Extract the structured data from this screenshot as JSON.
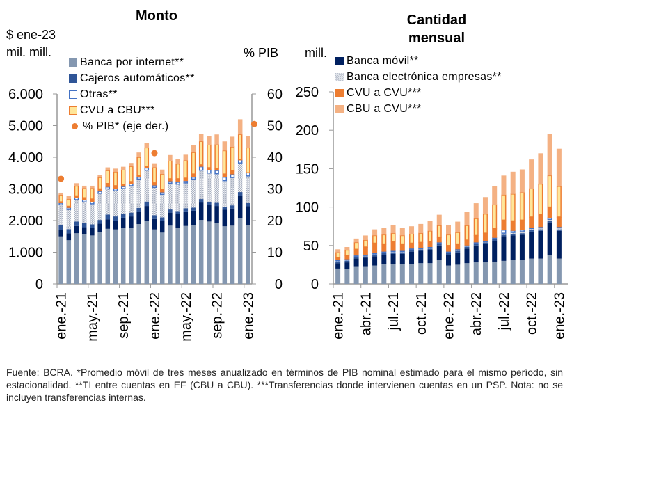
{
  "footnote": "Fuente: BCRA. *Promedio móvil de tres meses anualizado en términos de PIB nominal estimado para el mismo período, sin estacionalidad. **TI entre cuentas en EF (CBU a CBU). ***Transferencias donde intervienen cuentas en un PSP. Nota: no se incluyen transferencias internas.",
  "colors": {
    "banca_internet": "#8497b0",
    "banca_movil": "#002060",
    "cajeros": "#2f5597",
    "banca_electronica": "#c9cdd6",
    "otras": "#ffffff",
    "otras_border": "#4472c4",
    "cvu_cvu": "#ed7d31",
    "cvu_cbu": "#ffe699",
    "cvu_cbu_border": "#ed7d31",
    "cbu_cvu": "#f4b183",
    "pib_dot": "#ed7d31",
    "axis": "#999999"
  },
  "chart_data": [
    {
      "type": "bar",
      "stacked": true,
      "title": "Monto",
      "ylabel": "$ ene-23 mil. mill.",
      "y2label": "% PIB",
      "ylim": [
        0,
        6000
      ],
      "y2lim": [
        0,
        60
      ],
      "yticks": [
        "0",
        "1.000",
        "2.000",
        "3.000",
        "4.000",
        "5.000",
        "6.000"
      ],
      "y2ticks": [
        "0",
        "10",
        "20",
        "30",
        "40",
        "50",
        "60"
      ],
      "xtick_labels": [
        "ene.-21",
        "may.-21",
        "sep.-21",
        "ene.-22",
        "may.-22",
        "sep.-22",
        "ene.-23"
      ],
      "xtick_index": [
        0,
        4,
        8,
        12,
        16,
        20,
        24
      ],
      "categories": [
        "ene-21",
        "feb-21",
        "mar-21",
        "abr-21",
        "may-21",
        "jun-21",
        "jul-21",
        "ago-21",
        "sep-21",
        "oct-21",
        "nov-21",
        "dic-21",
        "ene-22",
        "feb-22",
        "mar-22",
        "abr-22",
        "may-22",
        "jun-22",
        "jul-22",
        "ago-22",
        "sep-22",
        "oct-22",
        "nov-22",
        "dic-22",
        "ene-23"
      ],
      "legend": [
        {
          "key": "banca_internet",
          "label": "Banca por internet**"
        },
        {
          "key": "cajeros",
          "label": "Cajeros automáticos**"
        },
        {
          "key": "otras",
          "label": "Otras**"
        },
        {
          "key": "cvu_cbu",
          "label": "CVU a CBU***"
        },
        {
          "key": "pib",
          "label": "% PIB* (eje der.)",
          "marker": "dot"
        }
      ],
      "series": [
        {
          "key": "banca_internet",
          "name": "Banca por internet**",
          "values": [
            1500,
            1380,
            1600,
            1570,
            1530,
            1640,
            1740,
            1720,
            1760,
            1780,
            1890,
            2000,
            1720,
            1620,
            1840,
            1760,
            1830,
            1850,
            2020,
            1970,
            1930,
            1820,
            1840,
            2080,
            1850
          ]
        },
        {
          "key": "banca_movil",
          "name": "Banca móvil**",
          "values": [
            210,
            220,
            230,
            220,
            230,
            260,
            300,
            280,
            330,
            350,
            380,
            460,
            330,
            360,
            410,
            440,
            460,
            460,
            550,
            520,
            530,
            520,
            540,
            700,
            600
          ]
        },
        {
          "key": "cajeros",
          "name": "Cajeros automáticos**",
          "values": [
            140,
            130,
            140,
            140,
            120,
            120,
            150,
            130,
            120,
            120,
            130,
            140,
            120,
            120,
            100,
            100,
            100,
            100,
            110,
            100,
            100,
            100,
            100,
            120,
            100
          ]
        },
        {
          "key": "banca_electronica",
          "name": "Banca electrónica empresas**",
          "values": [
            650,
            620,
            690,
            660,
            650,
            840,
            810,
            810,
            800,
            850,
            910,
            990,
            880,
            730,
            830,
            850,
            800,
            900,
            910,
            910,
            920,
            820,
            880,
            920,
            860
          ]
        },
        {
          "key": "otras",
          "name": "Otras**",
          "values": [
            50,
            50,
            60,
            60,
            60,
            60,
            60,
            60,
            60,
            60,
            60,
            70,
            60,
            60,
            60,
            60,
            60,
            60,
            110,
            100,
            100,
            110,
            100,
            100,
            100
          ]
        },
        {
          "key": "cvu_cvu",
          "name": "CVU a CVU***",
          "values": [
            40,
            50,
            60,
            70,
            90,
            80,
            110,
            100,
            70,
            70,
            60,
            50,
            80,
            100,
            80,
            110,
            90,
            100,
            60,
            70,
            60,
            100,
            110,
            0,
            0
          ]
        },
        {
          "key": "cvu_cbu",
          "name": "CVU a CBU***",
          "values": [
            220,
            230,
            310,
            300,
            340,
            360,
            410,
            440,
            460,
            480,
            570,
            590,
            490,
            480,
            570,
            470,
            560,
            680,
            740,
            720,
            760,
            740,
            760,
            800,
            790
          ]
        },
        {
          "key": "cbu_cvu",
          "name": "CBU a CVU***",
          "values": [
            70,
            90,
            90,
            80,
            80,
            90,
            100,
            100,
            100,
            110,
            150,
            160,
            130,
            140,
            180,
            160,
            180,
            230,
            240,
            290,
            320,
            290,
            320,
            480,
            380
          ]
        }
      ],
      "secondary": {
        "key": "pib",
        "name": "% PIB* (eje der.)",
        "type": "scatter",
        "points": [
          {
            "index": 0,
            "value": 33.2
          },
          {
            "index": 12,
            "value": 41.3
          },
          {
            "index": 24,
            "value": 50.5
          }
        ]
      }
    },
    {
      "type": "bar",
      "stacked": true,
      "title": "Cantidad mensual",
      "ylabel": "mill.",
      "ylim": [
        0,
        250
      ],
      "yticks": [
        "0",
        "50",
        "100",
        "150",
        "200",
        "250"
      ],
      "xtick_labels": [
        "ene.-21",
        "abr.-21",
        "jul.-21",
        "oct.-21",
        "ene.-22",
        "abr.-22",
        "jul.-22",
        "oct.-22",
        "ene.-23"
      ],
      "xtick_index": [
        0,
        3,
        6,
        9,
        12,
        15,
        18,
        21,
        24
      ],
      "categories": [
        "ene-21",
        "feb-21",
        "mar-21",
        "abr-21",
        "may-21",
        "jun-21",
        "jul-21",
        "ago-21",
        "sep-21",
        "oct-21",
        "nov-21",
        "dic-21",
        "ene-22",
        "feb-22",
        "mar-22",
        "abr-22",
        "may-22",
        "jun-22",
        "jul-22",
        "ago-22",
        "sep-22",
        "oct-22",
        "nov-22",
        "dic-22",
        "ene-23"
      ],
      "legend": [
        {
          "key": "banca_movil",
          "label": "Banca móvil**"
        },
        {
          "key": "banca_electronica",
          "label": "Banca electrónica empresas**"
        },
        {
          "key": "cvu_cvu",
          "label": "CVU a CVU***"
        },
        {
          "key": "cbu_cvu",
          "label": "CBU a CVU***"
        }
      ],
      "series": [
        {
          "key": "banca_internet",
          "name": "Banca por internet**",
          "values": [
            20,
            19,
            23,
            23,
            24,
            26,
            26,
            26,
            26,
            27,
            27,
            31,
            24,
            25,
            27,
            28,
            28,
            29,
            30,
            31,
            31,
            33,
            33,
            38,
            33
          ]
        },
        {
          "key": "banca_movil",
          "name": "Banca móvil**",
          "values": [
            7,
            9,
            10,
            11,
            12,
            12,
            13,
            13,
            16,
            16,
            17,
            19,
            14,
            16,
            19,
            22,
            24,
            27,
            32,
            32,
            33,
            35,
            36,
            42,
            36
          ]
        },
        {
          "key": "cajeros",
          "name": "Cajeros automáticos**",
          "values": [
            2,
            2,
            2,
            2,
            2,
            2,
            2,
            2,
            2,
            2,
            2,
            2,
            2,
            2,
            2,
            2,
            2,
            2,
            2,
            2,
            2,
            2,
            2,
            2,
            2
          ]
        },
        {
          "key": "banca_electronica",
          "name": "Banca electrónica empresas**",
          "values": [
            1,
            1,
            1,
            1,
            1,
            1,
            1,
            1,
            1,
            1,
            1,
            1,
            1,
            1,
            1,
            1,
            1,
            1,
            2,
            2,
            2,
            2,
            2,
            2,
            2
          ]
        },
        {
          "key": "otras",
          "name": "Otras**",
          "values": [
            1,
            1,
            1,
            1,
            1,
            1,
            1,
            1,
            1,
            1,
            1,
            1,
            1,
            1,
            1,
            1,
            1,
            1,
            4,
            2,
            2,
            1,
            1,
            2,
            1
          ]
        },
        {
          "key": "cvu_cvu",
          "name": "CVU a CVU***",
          "values": [
            3,
            5,
            8,
            10,
            13,
            10,
            12,
            9,
            7,
            7,
            7,
            7,
            8,
            7,
            7,
            9,
            10,
            12,
            13,
            13,
            13,
            14,
            16,
            14,
            13
          ]
        },
        {
          "key": "cvu_cbu",
          "name": "CVU a CBU***",
          "values": [
            7,
            7,
            9,
            9,
            10,
            12,
            11,
            11,
            12,
            12,
            14,
            15,
            14,
            15,
            19,
            22,
            25,
            31,
            33,
            35,
            36,
            37,
            40,
            41,
            40
          ]
        },
        {
          "key": "cbu_cvu",
          "name": "CBU a CVU***",
          "values": [
            4,
            4,
            5,
            6,
            8,
            9,
            11,
            10,
            10,
            12,
            13,
            14,
            13,
            14,
            18,
            20,
            22,
            24,
            25,
            29,
            30,
            38,
            40,
            54,
            49
          ]
        }
      ]
    }
  ]
}
